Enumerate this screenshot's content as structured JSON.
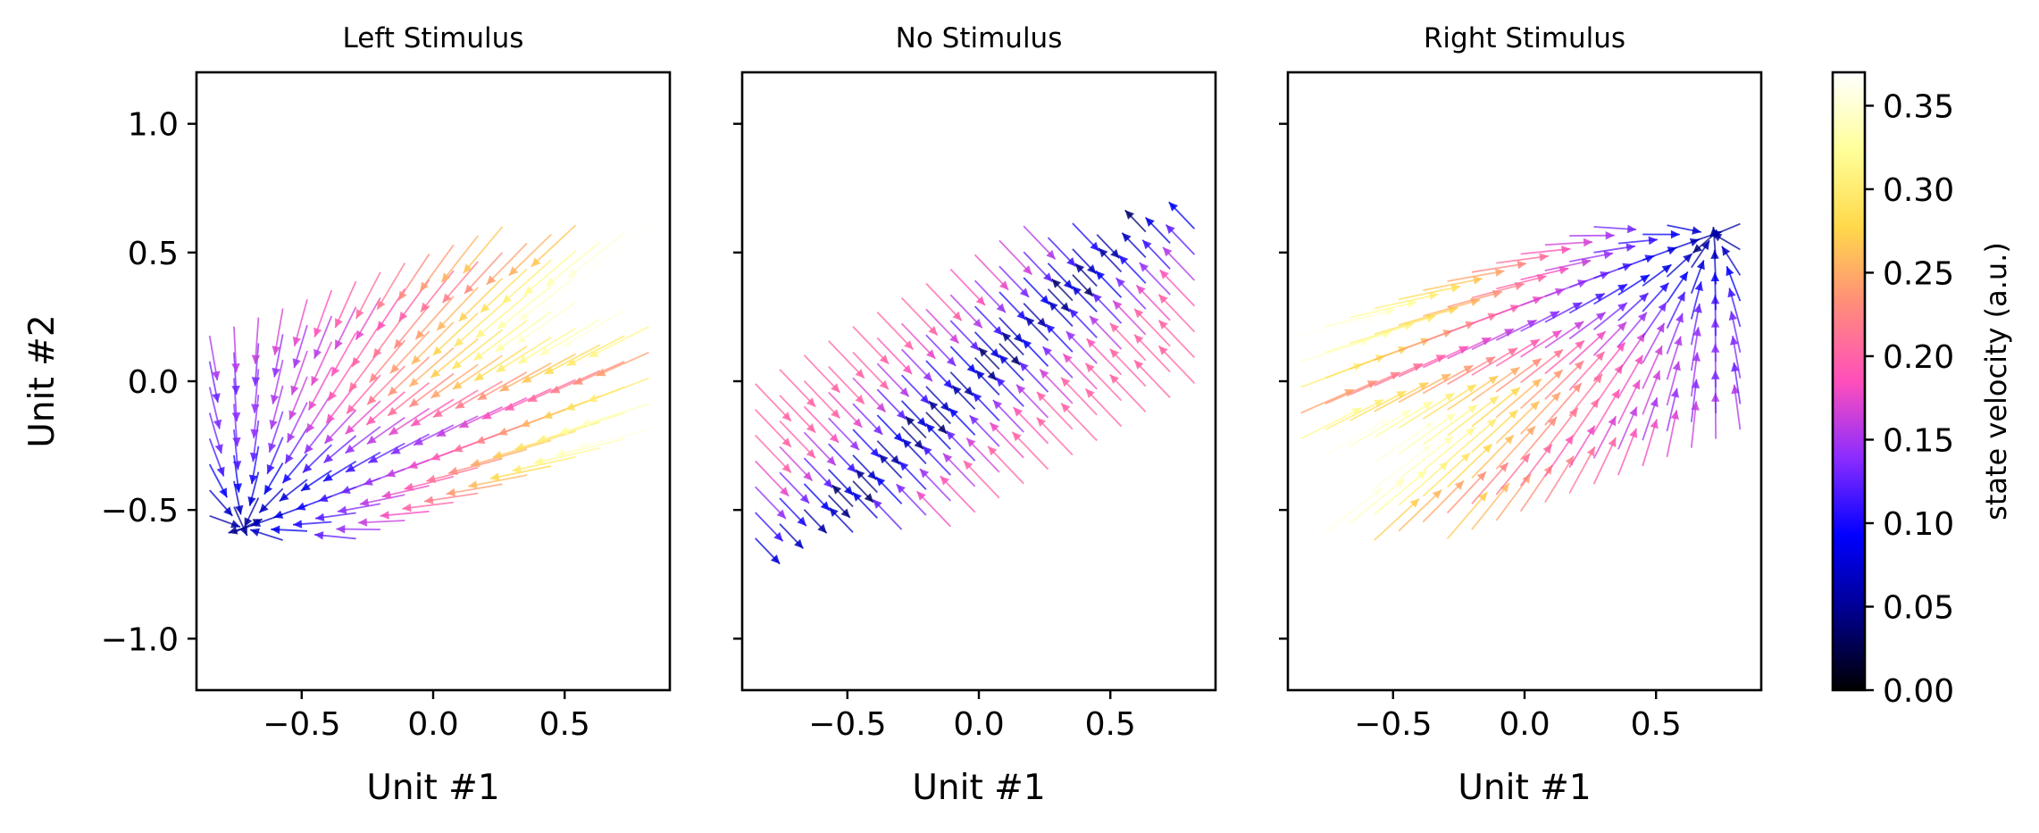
{
  "chart_data": {
    "type": "quiver",
    "figure": "phase-portrait state velocity fields",
    "panels": [
      {
        "title": "Left Stimulus",
        "xlabel": "Unit #1",
        "ylabel": "Unit #2",
        "xlim": [
          -0.9,
          0.9
        ],
        "ylim": [
          -1.2,
          1.2
        ],
        "xticks": [
          "−0.5",
          "0.0",
          "0.5"
        ],
        "yticks": [
          "1.0",
          "0.5",
          "0.0",
          "−0.5",
          "−1.0"
        ],
        "fixed_point": [
          -0.72,
          -0.57
        ],
        "fan_grid": {
          "x_min": -0.85,
          "x_max": 0.82,
          "n_cols": 19,
          "rows_y_at_center": [
            -0.5,
            -0.4,
            -0.3,
            -0.2,
            -0.1,
            0.0,
            0.1,
            0.2,
            0.3,
            0.4,
            0.5
          ],
          "slope": 0.38,
          "manifold_offset": 0.0
        }
      },
      {
        "title": "No Stimulus",
        "xlabel": "Unit #1",
        "ylabel": "",
        "xlim": [
          -0.9,
          0.9
        ],
        "ylim": [
          -1.2,
          1.2
        ],
        "xticks": [
          "−0.5",
          "0.0",
          "0.5"
        ],
        "yticks": [
          "",
          "",
          "",
          "",
          ""
        ],
        "fixed_line": {
          "from": [
            -0.6,
            -0.55
          ],
          "to": [
            0.55,
            0.55
          ]
        },
        "fan_grid": {
          "x_min": -0.85,
          "x_max": 0.82,
          "n_cols": 19,
          "rows_y_at_center": [
            -0.5,
            -0.4,
            -0.3,
            -0.2,
            -0.1,
            0.0,
            0.1,
            0.2,
            0.3,
            0.4,
            0.5
          ],
          "slope": 0.6,
          "manifold_offset": 0.0
        }
      },
      {
        "title": "Right Stimulus",
        "xlabel": "Unit #1",
        "ylabel": "",
        "xlim": [
          -0.9,
          0.9
        ],
        "ylim": [
          -1.2,
          1.2
        ],
        "xticks": [
          "−0.5",
          "0.0",
          "0.5"
        ],
        "yticks": [
          "",
          "",
          "",
          "",
          ""
        ],
        "fixed_point": [
          0.72,
          0.57
        ],
        "fan_grid": {
          "x_min": -0.85,
          "x_max": 0.82,
          "n_cols": 19,
          "rows_y_at_center": [
            -0.5,
            -0.4,
            -0.3,
            -0.2,
            -0.1,
            0.0,
            0.1,
            0.2,
            0.3,
            0.4,
            0.5
          ],
          "slope": 0.38,
          "manifold_offset": 0.0
        }
      }
    ],
    "colorbar": {
      "label": "state velocity (a.u.)",
      "colormap": "gnuplot2",
      "range": [
        0.0,
        0.37
      ],
      "ticks": [
        "0.00",
        "0.05",
        "0.10",
        "0.15",
        "0.20",
        "0.25",
        "0.30",
        "0.35"
      ],
      "tick_values": [
        0.0,
        0.05,
        0.1,
        0.15,
        0.2,
        0.25,
        0.3,
        0.35
      ],
      "color_stops": [
        "#000000",
        "#00008c",
        "#0000ff",
        "#8a2cff",
        "#ff4fbb",
        "#ff8c7a",
        "#ffd94a",
        "#ffff9a",
        "#ffffff"
      ]
    }
  }
}
